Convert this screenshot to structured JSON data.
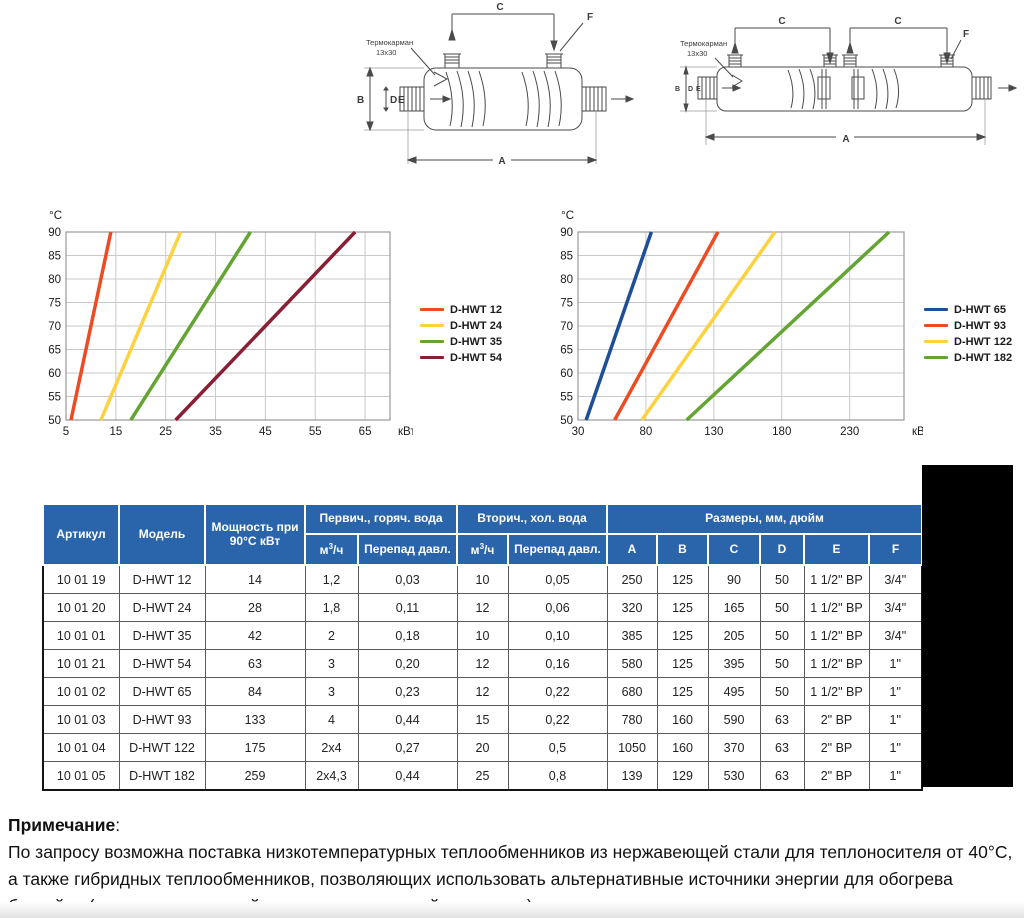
{
  "diagrams": {
    "thermowell_label": "Термокарман",
    "thermowell_size": "13x30",
    "dim_a": "A",
    "dim_b": "B",
    "dim_c": "C",
    "dim_d": "D",
    "dim_e": "E",
    "dim_f": "F"
  },
  "chart_data": [
    {
      "type": "line",
      "title": "",
      "y_unit": "°C",
      "x_unit": "кВт",
      "ylim": [
        50,
        90
      ],
      "yticks": [
        50,
        55,
        60,
        65,
        70,
        75,
        80,
        85,
        90
      ],
      "xlim": [
        5,
        70
      ],
      "xticks": [
        5,
        15,
        25,
        35,
        45,
        55,
        65
      ],
      "grid": true,
      "legend_position": "right",
      "series": [
        {
          "name": "D-HWT 12",
          "color": "#ee4b23",
          "points": [
            [
              6,
              50
            ],
            [
              14,
              90
            ]
          ]
        },
        {
          "name": "D-HWT 24",
          "color": "#fdd23f",
          "points": [
            [
              12,
              50
            ],
            [
              28,
              90
            ]
          ]
        },
        {
          "name": "D-HWT 35",
          "color": "#63a432",
          "points": [
            [
              18,
              50
            ],
            [
              42,
              90
            ]
          ]
        },
        {
          "name": "D-HWT 54",
          "color": "#8a1e33",
          "points": [
            [
              27,
              50
            ],
            [
              63,
              90
            ]
          ]
        }
      ]
    },
    {
      "type": "line",
      "title": "",
      "y_unit": "°C",
      "x_unit": "кВт",
      "ylim": [
        50,
        90
      ],
      "yticks": [
        50,
        55,
        60,
        65,
        70,
        75,
        80,
        85,
        90
      ],
      "xlim": [
        30,
        270
      ],
      "xticks": [
        30,
        80,
        130,
        180,
        230
      ],
      "grid": true,
      "legend_position": "right",
      "series": [
        {
          "name": "D-HWT 65",
          "color": "#1d4f96",
          "points": [
            [
              36,
              50
            ],
            [
              84,
              90
            ]
          ]
        },
        {
          "name": "D-HWT 93",
          "color": "#ee4b23",
          "points": [
            [
              57,
              50
            ],
            [
              133,
              90
            ]
          ]
        },
        {
          "name": "D-HWT 122",
          "color": "#fdd23f",
          "points": [
            [
              77,
              50
            ],
            [
              175,
              90
            ]
          ]
        },
        {
          "name": "D-HWT 182",
          "color": "#63a432",
          "points": [
            [
              110,
              50
            ],
            [
              259,
              90
            ]
          ]
        }
      ]
    }
  ],
  "table": {
    "header_color": "#2a65ab",
    "header": {
      "artikul": "Артикул",
      "model": "Модель",
      "power": "Мощность при 90°С кВт",
      "primary": "Первич., горяч. вода",
      "secondary": "Вторич., хол. вода",
      "sizes": "Размеры, мм, дюйм",
      "flow_base": "м",
      "flow_sup": "3",
      "flow_rest": "/ч",
      "pressure": "Перепад давл.",
      "dim_cols": [
        "A",
        "B",
        "C",
        "D",
        "E",
        "F"
      ]
    },
    "rows": [
      [
        "10 01 19",
        "D-HWT 12",
        "14",
        "1,2",
        "0,03",
        "10",
        "0,05",
        "250",
        "125",
        "90",
        "50",
        "1 1/2\" ВР",
        "3/4\""
      ],
      [
        "10 01 20",
        "D-HWT 24",
        "28",
        "1,8",
        "0,11",
        "12",
        "0,06",
        "320",
        "125",
        "165",
        "50",
        "1 1/2\" ВР",
        "3/4\""
      ],
      [
        "10 01 01",
        "D-HWT 35",
        "42",
        "2",
        "0,18",
        "10",
        "0,10",
        "385",
        "125",
        "205",
        "50",
        "1 1/2\" ВР",
        "3/4\""
      ],
      [
        "10 01 21",
        "D-HWT 54",
        "63",
        "3",
        "0,20",
        "12",
        "0,16",
        "580",
        "125",
        "395",
        "50",
        "1 1/2\" ВР",
        "1\""
      ],
      [
        "10 01 02",
        "D-HWT 65",
        "84",
        "3",
        "0,23",
        "12",
        "0,22",
        "680",
        "125",
        "495",
        "50",
        "1 1/2\" ВР",
        "1\""
      ],
      [
        "10 01 03",
        "D-HWT 93",
        "133",
        "4",
        "0,44",
        "15",
        "0,22",
        "780",
        "160",
        "590",
        "63",
        "2\" ВР",
        "1\""
      ],
      [
        "10 01 04",
        "D-HWT 122",
        "175",
        "2x4",
        "0,27",
        "20",
        "0,5",
        "1050",
        "160",
        "370",
        "63",
        "2\" ВР",
        "1\""
      ],
      [
        "10 01 05",
        "D-HWT 182",
        "259",
        "2x4,3",
        "0,44",
        "25",
        "0,8",
        "139",
        "129",
        "530",
        "63",
        "2\" ВР",
        "1\""
      ]
    ]
  },
  "note": {
    "title": "Примечание",
    "colon": ":",
    "body": "По запросу возможна поставка низкотемпературных теплообменников из нержавеющей стали для теплоносителя от 40°С, а также гибридных теплообменников, позволяющих использовать альтернативные источники энергии для обогрева бассейна (например, тепловой насос или солнечный коллектор)."
  }
}
